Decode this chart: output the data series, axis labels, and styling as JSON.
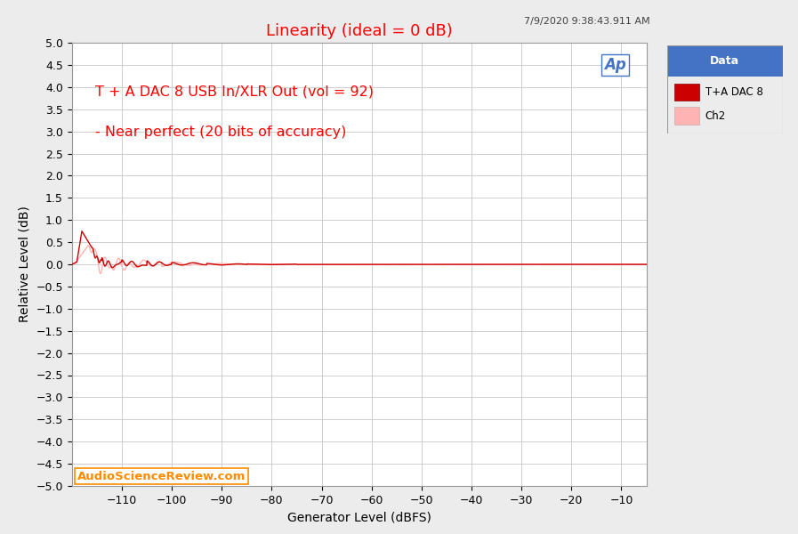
{
  "title": "Linearity (ideal = 0 dB)",
  "title_color": "#FF0000",
  "timestamp": "7/9/2020 9:38:43.911 AM",
  "xlabel": "Generator Level (dBFS)",
  "ylabel": "Relative Level (dB)",
  "xlim": [
    -120,
    -5
  ],
  "ylim": [
    -5.0,
    5.0
  ],
  "xticks": [
    -110,
    -100,
    -90,
    -80,
    -70,
    -60,
    -50,
    -40,
    -30,
    -20,
    -10
  ],
  "yticks": [
    -5.0,
    -4.5,
    -4.0,
    -3.5,
    -3.0,
    -2.5,
    -2.0,
    -1.5,
    -1.0,
    -0.5,
    0.0,
    0.5,
    1.0,
    1.5,
    2.0,
    2.5,
    3.0,
    3.5,
    4.0,
    4.5,
    5.0
  ],
  "annotation_line1": "T + A DAC 8 USB In/XLR Out (vol = 92)",
  "annotation_line2": "- Near perfect (20 bits of accuracy)",
  "annotation_color": "#FF0000",
  "watermark": "AudioScienceReview.com",
  "watermark_color": "#FF8C00",
  "background_color": "#ECECEC",
  "plot_background": "#FFFFFF",
  "grid_color": "#C8C8C8",
  "legend_title": "Data",
  "legend_title_bg": "#4472C4",
  "legend_entries": [
    "T+A DAC 8",
    "Ch2"
  ],
  "ch1_color": "#CC0000",
  "ch2_color": "#FFB3B3",
  "ap_logo_color": "#4472C4"
}
